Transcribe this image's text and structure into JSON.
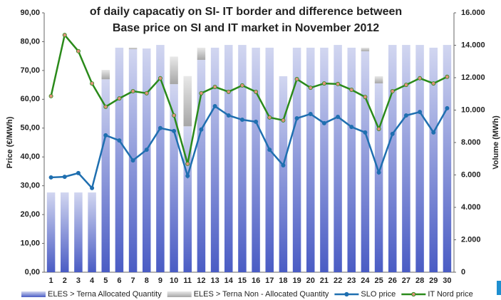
{
  "chart_data": {
    "type": "bar-line",
    "title": [
      "of daily capacatiy on SI- IT border and difference between",
      "Base price on SI and IT market in November 2012"
    ],
    "ylabel": "Price (€/MWh)",
    "y2label": "Volume (MWh)",
    "categories": [
      "1",
      "2",
      "3",
      "4",
      "5",
      "6",
      "7",
      "8",
      "9",
      "10",
      "11",
      "12",
      "13",
      "14",
      "15",
      "16",
      "17",
      "18",
      "19",
      "20",
      "21",
      "22",
      "23",
      "24",
      "25",
      "26",
      "27",
      "28",
      "29",
      "30"
    ],
    "ylim": [
      0,
      90
    ],
    "yticks": [
      {
        "value": 0,
        "label": "0,00"
      },
      {
        "value": 10,
        "label": "10,00"
      },
      {
        "value": 20,
        "label": "20,00"
      },
      {
        "value": 30,
        "label": "30,00"
      },
      {
        "value": 40,
        "label": "40,00"
      },
      {
        "value": 50,
        "label": "50,00"
      },
      {
        "value": 60,
        "label": "60,00"
      },
      {
        "value": 70,
        "label": "70,00"
      },
      {
        "value": 80,
        "label": "80,00"
      },
      {
        "value": 90,
        "label": "90,00"
      }
    ],
    "y2lim": [
      0,
      16000
    ],
    "y2ticks": [
      0,
      {
        "value": 2000,
        "label": "2.000"
      },
      {
        "value": 4000,
        "label": "4.000"
      },
      {
        "value": 6000,
        "label": "6.000"
      },
      {
        "value": 8000,
        "label": "8.000"
      },
      {
        "value": 10000,
        "label": "10.000"
      },
      {
        "value": 12000,
        "label": "12.000"
      },
      {
        "value": 14000,
        "label": "14.000"
      },
      {
        "value": 16000,
        "label": "16.000"
      }
    ],
    "series": [
      {
        "name": "ELES > Terna Allocated Quantity",
        "kind": "bar",
        "axis": "y2",
        "color": "#4a5cc4",
        "values": [
          4920,
          4920,
          4920,
          4920,
          11900,
          13850,
          13760,
          13800,
          14020,
          11600,
          9000,
          13100,
          13850,
          14020,
          14020,
          13850,
          13850,
          12090,
          13850,
          13850,
          13850,
          14020,
          13850,
          13630,
          11650,
          14020,
          14020,
          14020,
          13850,
          14020
        ]
      },
      {
        "name": "ELES > Terna Non - Allocated Quantity",
        "kind": "bar",
        "axis": "y2",
        "color": "#a6a6a6",
        "values": [
          0,
          0,
          0,
          0,
          580,
          0,
          100,
          0,
          0,
          1700,
          3100,
          750,
          0,
          0,
          0,
          0,
          0,
          0,
          0,
          0,
          0,
          0,
          0,
          220,
          440,
          0,
          0,
          0,
          0,
          0
        ]
      },
      {
        "name": "SLO price",
        "kind": "line",
        "color": "#1f6fb0",
        "marker": "#1f6fb0",
        "values": [
          32.9,
          33.1,
          34.4,
          29.2,
          47.5,
          45.7,
          38.8,
          42.5,
          50.0,
          49.0,
          33.4,
          49.5,
          57.6,
          54.4,
          52.9,
          52.2,
          42.5,
          37.1,
          53.4,
          54.9,
          51.7,
          53.9,
          50.4,
          48.5,
          34.6,
          48.0,
          54.4,
          55.6,
          48.5,
          56.9
        ]
      },
      {
        "name": "IT Nord price",
        "kind": "line",
        "color": "#2a8a1a",
        "marker": "#e0907a",
        "values": [
          61.1,
          82.3,
          76.7,
          65.5,
          57.4,
          60.3,
          62.8,
          62.1,
          67.3,
          54.4,
          37.6,
          62.1,
          64.3,
          62.6,
          64.8,
          62.6,
          53.7,
          52.7,
          67.0,
          64.0,
          65.5,
          65.3,
          63.3,
          60.8,
          49.7,
          62.8,
          65.0,
          67.3,
          65.5,
          67.8
        ]
      }
    ]
  }
}
